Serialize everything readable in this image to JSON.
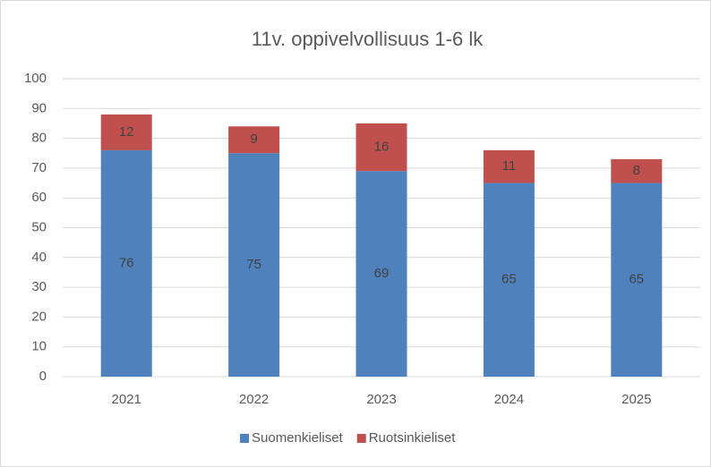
{
  "chart_data": {
    "type": "bar",
    "stacked": true,
    "title": "11v. oppivelvollisuus 1-6 lk",
    "categories": [
      "2021",
      "2022",
      "2023",
      "2024",
      "2025"
    ],
    "series": [
      {
        "name": "Suomenkieliset",
        "color": "#4f81bd",
        "values": [
          76,
          75,
          69,
          65,
          65
        ]
      },
      {
        "name": "Ruotsinkieliset",
        "color": "#c0504d",
        "values": [
          12,
          9,
          16,
          11,
          8
        ]
      }
    ],
    "ylim": [
      0,
      100
    ],
    "yticks": [
      0,
      10,
      20,
      30,
      40,
      50,
      60,
      70,
      80,
      90,
      100
    ],
    "grid": true,
    "legend": "bottom"
  }
}
